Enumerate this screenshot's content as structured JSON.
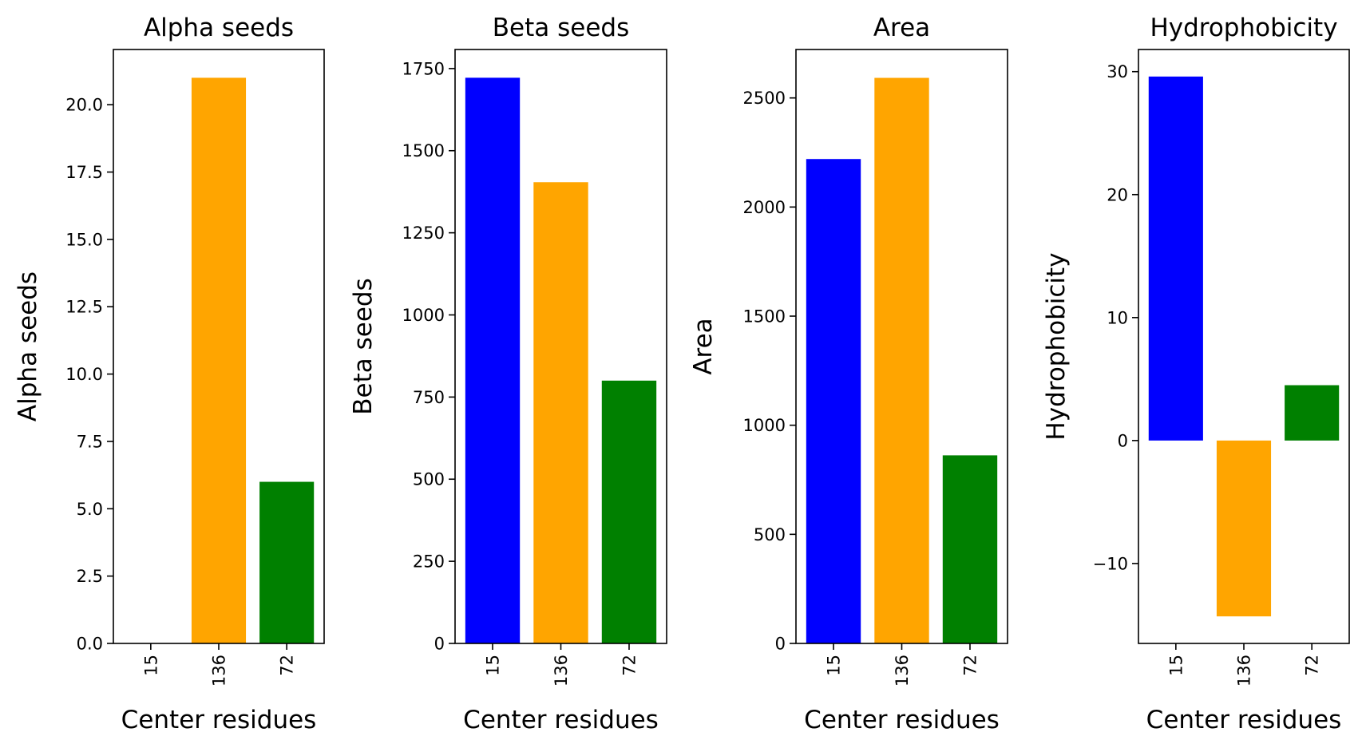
{
  "chart_data": [
    {
      "type": "bar",
      "title": "Alpha seeds",
      "xlabel": "Center residues",
      "ylabel": "Alpha seeds",
      "categories": [
        "15",
        "136",
        "72"
      ],
      "values": [
        0,
        21,
        6
      ],
      "colors": [
        "#0000ff",
        "#ffa500",
        "#008000"
      ],
      "ylim": [
        0,
        22.05
      ],
      "yticks": [
        0.0,
        2.5,
        5.0,
        7.5,
        10.0,
        12.5,
        15.0,
        17.5,
        20.0
      ],
      "ytick_labels": [
        "0.0",
        "2.5",
        "5.0",
        "7.5",
        "10.0",
        "12.5",
        "15.0",
        "17.5",
        "20.0"
      ]
    },
    {
      "type": "bar",
      "title": "Beta seeds",
      "xlabel": "Center residues",
      "ylabel": "Beta seeds",
      "categories": [
        "15",
        "136",
        "72"
      ],
      "values": [
        1722,
        1404,
        800
      ],
      "colors": [
        "#0000ff",
        "#ffa500",
        "#008000"
      ],
      "ylim": [
        0,
        1808
      ],
      "yticks": [
        0,
        250,
        500,
        750,
        1000,
        1250,
        1500,
        1750
      ],
      "ytick_labels": [
        "0",
        "250",
        "500",
        "750",
        "1000",
        "1250",
        "1500",
        "1750"
      ]
    },
    {
      "type": "bar",
      "title": "Area",
      "xlabel": "Center residues",
      "ylabel": "Area",
      "categories": [
        "15",
        "136",
        "72"
      ],
      "values": [
        2220,
        2592,
        862
      ],
      "colors": [
        "#0000ff",
        "#ffa500",
        "#008000"
      ],
      "ylim": [
        0,
        2722
      ],
      "yticks": [
        0,
        500,
        1000,
        1500,
        2000,
        2500
      ],
      "ytick_labels": [
        "0",
        "500",
        "1000",
        "1500",
        "2000",
        "2500"
      ]
    },
    {
      "type": "bar",
      "title": "Hydrophobicity",
      "xlabel": "Center residues",
      "ylabel": "Hydrophobicity",
      "categories": [
        "15",
        "136",
        "72"
      ],
      "values": [
        29.6,
        -14.3,
        4.5
      ],
      "colors": [
        "#0000ff",
        "#ffa500",
        "#008000"
      ],
      "ylim": [
        -16.5,
        31.8
      ],
      "yticks": [
        -10,
        0,
        10,
        20,
        30
      ],
      "ytick_labels": [
        "−10",
        "0",
        "10",
        "20",
        "30"
      ]
    }
  ]
}
